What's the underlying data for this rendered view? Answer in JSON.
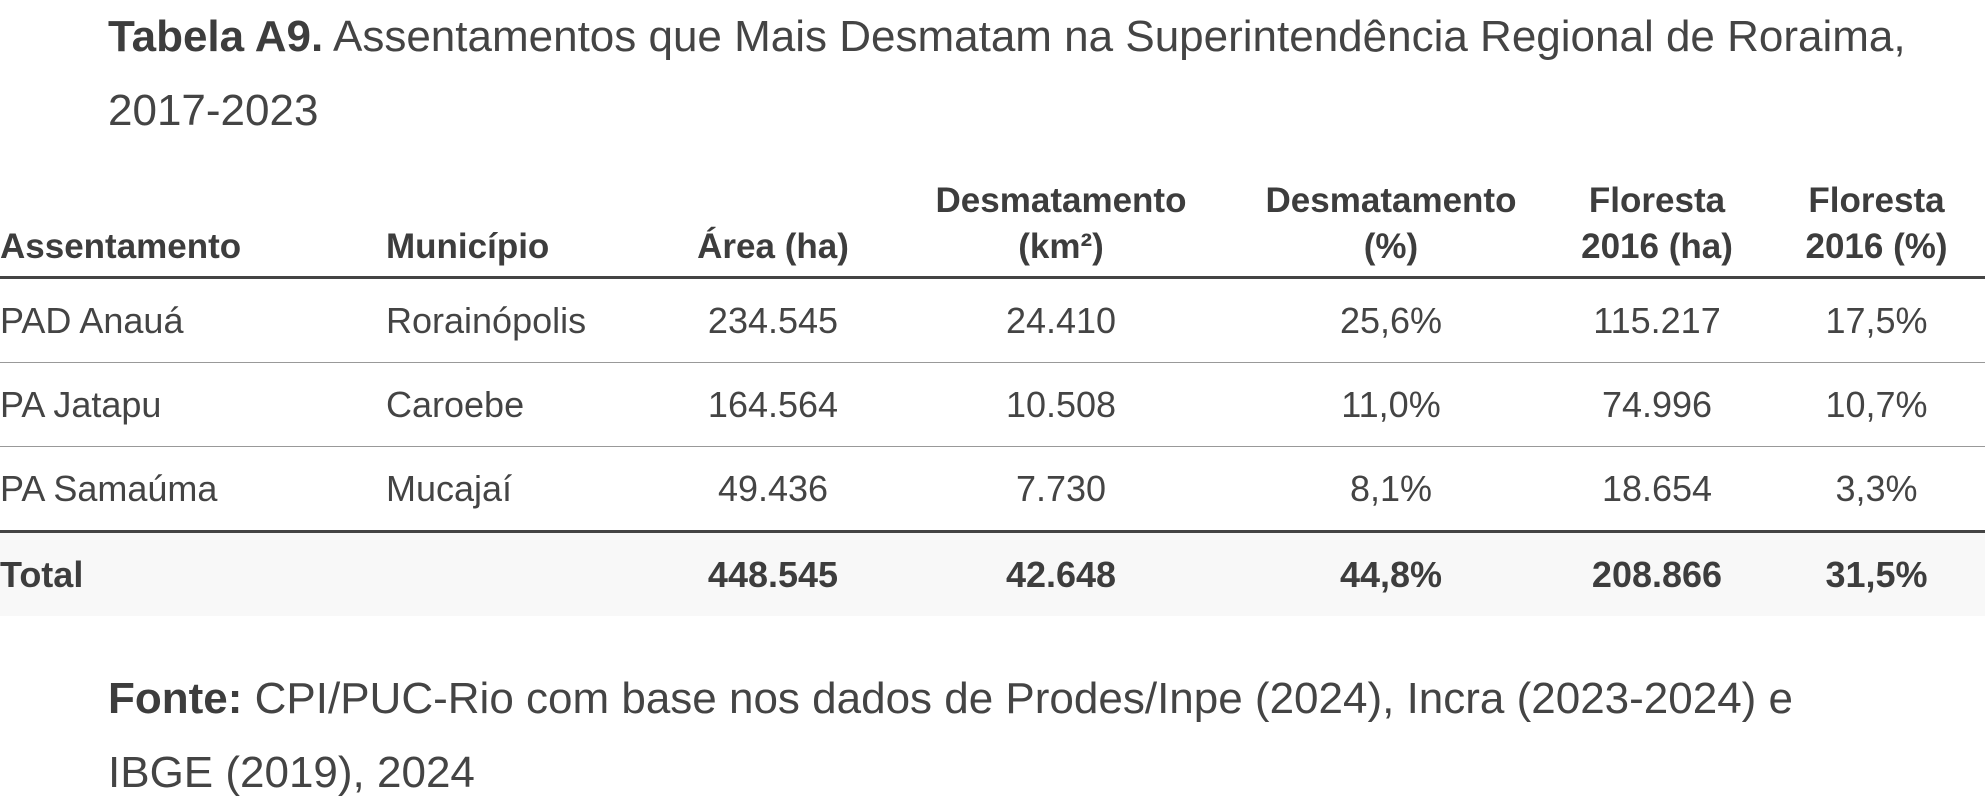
{
  "title": {
    "label": "Tabela A9.",
    "text": "Assentamentos que Mais Desmatam na Superintendência Regional de Roraima, 2017-2023"
  },
  "table": {
    "header": [
      "Assentamento",
      "Município",
      "Área (ha)",
      "Desmatamento (km²)",
      "Desmatamento (%)",
      "Floresta 2016 (ha)",
      "Floresta 2016 (%)"
    ],
    "rows": [
      [
        "PAD Anauá",
        "Rorainópolis",
        "234.545",
        "24.410",
        "25,6%",
        "115.217",
        "17,5%"
      ],
      [
        "PA Jatapu",
        "Caroebe",
        "164.564",
        "10.508",
        "11,0%",
        "74.996",
        "10,7%"
      ],
      [
        "PA Samaúma",
        "Mucajaí",
        "49.436",
        "7.730",
        "8,1%",
        "18.654",
        "3,3%"
      ]
    ],
    "total": {
      "label": "Total",
      "values": [
        "448.545",
        "42.648",
        "44,8%",
        "208.866",
        "31,5%"
      ]
    }
  },
  "source": {
    "label": "Fonte:",
    "text": "CPI/PUC-Rio com base nos dados de Prodes/Inpe (2024), Incra (2023-2024) e IBGE (2019), 2024"
  }
}
